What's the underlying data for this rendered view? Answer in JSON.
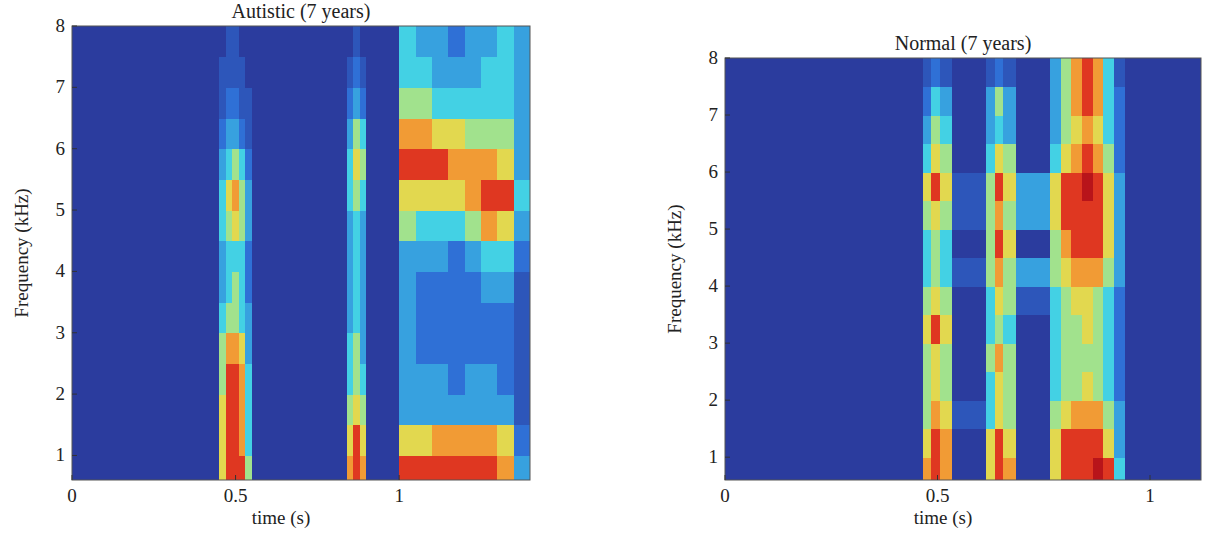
{
  "chart_data": [
    {
      "type": "heatmap",
      "title": "Autistic (7 years)",
      "x_label": "time (s)",
      "y_label": "Frequency (kHz)",
      "xlim": [
        0,
        1.4
      ],
      "ylim": [
        0.6,
        8
      ],
      "xticks": [
        0,
        0.5,
        1
      ],
      "yticks": [
        1,
        2,
        3,
        4,
        5,
        6,
        7,
        8
      ],
      "zlim": [
        0,
        9
      ],
      "xbins": [
        0,
        0.45,
        0.47,
        0.49,
        0.51,
        0.53,
        0.55,
        0.84,
        0.86,
        0.88,
        0.9,
        1.0,
        1.05,
        1.1,
        1.15,
        1.2,
        1.25,
        1.3,
        1.35,
        1.4
      ],
      "ybins": [
        0.6,
        1,
        1.5,
        2,
        2.5,
        3,
        3.5,
        4,
        4.5,
        5,
        5.5,
        6,
        6.5,
        7,
        7.5,
        8
      ],
      "z": [
        [
          0,
          0,
          0,
          0,
          0,
          0,
          0,
          0,
          0,
          0,
          0,
          0,
          0,
          0,
          0
        ],
        [
          6,
          6,
          6,
          5,
          5,
          4,
          3,
          3,
          4,
          4,
          3,
          2,
          1,
          1,
          0
        ],
        [
          8,
          8,
          8,
          8,
          7,
          5,
          4,
          4,
          5,
          6,
          4,
          3,
          2,
          1,
          1
        ],
        [
          8,
          8,
          8,
          8,
          7,
          5,
          5,
          4,
          6,
          7,
          5,
          3,
          2,
          1,
          1
        ],
        [
          8,
          7,
          7,
          7,
          6,
          4,
          4,
          4,
          5,
          5,
          4,
          2,
          1,
          1,
          0
        ],
        [
          5,
          4,
          4,
          4,
          3,
          3,
          2,
          2,
          3,
          3,
          2,
          1,
          1,
          0,
          0
        ],
        [
          0,
          0,
          0,
          0,
          0,
          0,
          0,
          0,
          0,
          0,
          0,
          0,
          0,
          0,
          0
        ],
        [
          7,
          6,
          5,
          4,
          4,
          3,
          3,
          3,
          3,
          4,
          4,
          3,
          2,
          1,
          0
        ],
        [
          8,
          8,
          6,
          5,
          5,
          4,
          4,
          4,
          4,
          5,
          6,
          5,
          3,
          2,
          1
        ],
        [
          7,
          6,
          5,
          4,
          3,
          3,
          3,
          3,
          3,
          4,
          5,
          4,
          2,
          1,
          0
        ],
        [
          0,
          0,
          0,
          0,
          0,
          0,
          0,
          0,
          0,
          0,
          0,
          0,
          0,
          0,
          0
        ],
        [
          8,
          6,
          3,
          3,
          3,
          3,
          3,
          3,
          5,
          6,
          8,
          7,
          5,
          4,
          4
        ],
        [
          8,
          6,
          3,
          3,
          2,
          2,
          2,
          3,
          4,
          6,
          8,
          7,
          5,
          4,
          3
        ],
        [
          8,
          7,
          3,
          3,
          2,
          2,
          2,
          3,
          4,
          6,
          8,
          6,
          4,
          3,
          3
        ],
        [
          8,
          7,
          3,
          2,
          2,
          2,
          2,
          2,
          4,
          6,
          7,
          6,
          4,
          3,
          2
        ],
        [
          8,
          7,
          3,
          3,
          2,
          2,
          2,
          3,
          5,
          7,
          7,
          5,
          4,
          3,
          3
        ],
        [
          8,
          7,
          3,
          3,
          2,
          2,
          3,
          4,
          7,
          8,
          7,
          5,
          4,
          4,
          3
        ],
        [
          7,
          6,
          3,
          2,
          2,
          2,
          3,
          4,
          6,
          8,
          6,
          5,
          4,
          4,
          4
        ],
        [
          3,
          2,
          1,
          1,
          1,
          1,
          1,
          2,
          3,
          4,
          3,
          3,
          3,
          3,
          3
        ]
      ]
    },
    {
      "type": "heatmap",
      "title": "Normal (7 years)",
      "x_label": "time (s)",
      "y_label": "Frequency (kHz)",
      "xlim": [
        0,
        1.12
      ],
      "ylim": [
        0.6,
        8
      ],
      "xticks": [
        0,
        0.5,
        1
      ],
      "yticks": [
        1,
        2,
        3,
        4,
        5,
        6,
        7,
        8
      ],
      "zlim": [
        0,
        9
      ],
      "xbins": [
        0,
        0.465,
        0.485,
        0.505,
        0.535,
        0.615,
        0.635,
        0.655,
        0.685,
        0.765,
        0.79,
        0.815,
        0.84,
        0.865,
        0.89,
        0.915,
        0.94,
        1.12
      ],
      "ybins": [
        0.6,
        1,
        1.5,
        2,
        2.5,
        3,
        3.5,
        4,
        4.5,
        5,
        5.5,
        6,
        6.5,
        7,
        7.5,
        8
      ],
      "z": [
        [
          0,
          0,
          0,
          0,
          0,
          0,
          0,
          0,
          0,
          0,
          0,
          0,
          0,
          0,
          0
        ],
        [
          7,
          6,
          5,
          5,
          5,
          6,
          5,
          4,
          4,
          5,
          6,
          4,
          3,
          2,
          1
        ],
        [
          8,
          8,
          7,
          6,
          6,
          8,
          6,
          5,
          5,
          6,
          8,
          6,
          5,
          4,
          2
        ],
        [
          7,
          7,
          6,
          5,
          5,
          6,
          5,
          4,
          4,
          5,
          6,
          5,
          4,
          3,
          1
        ],
        [
          0,
          0,
          1,
          0,
          0,
          0,
          0,
          1,
          0,
          1,
          1,
          0,
          0,
          0,
          0
        ],
        [
          6,
          6,
          4,
          4,
          5,
          4,
          4,
          5,
          5,
          5,
          5,
          4,
          3,
          3,
          1
        ],
        [
          8,
          8,
          6,
          6,
          7,
          5,
          6,
          7,
          8,
          7,
          8,
          6,
          4,
          5,
          2
        ],
        [
          7,
          6,
          5,
          5,
          5,
          4,
          5,
          5,
          6,
          5,
          6,
          5,
          3,
          3,
          1
        ],
        [
          0,
          0,
          0,
          0,
          0,
          0,
          1,
          3,
          0,
          3,
          3,
          0,
          0,
          0,
          0
        ],
        [
          6,
          6,
          5,
          4,
          4,
          4,
          4,
          5,
          5,
          6,
          6,
          4,
          3,
          3,
          3
        ],
        [
          8,
          8,
          6,
          5,
          5,
          5,
          5,
          6,
          7,
          8,
          8,
          6,
          5,
          5,
          5
        ],
        [
          8,
          8,
          7,
          5,
          5,
          5,
          6,
          7,
          8,
          8,
          8,
          7,
          6,
          7,
          7
        ],
        [
          8,
          8,
          7,
          6,
          5,
          6,
          6,
          7,
          8,
          8,
          9,
          8,
          7,
          8,
          8
        ],
        [
          9,
          8,
          7,
          5,
          5,
          5,
          5,
          7,
          8,
          8,
          8,
          7,
          6,
          7,
          7
        ],
        [
          8,
          6,
          5,
          4,
          4,
          4,
          4,
          5,
          6,
          6,
          6,
          5,
          4,
          4,
          4
        ],
        [
          4,
          3,
          3,
          2,
          2,
          2,
          2,
          3,
          3,
          3,
          3,
          2,
          2,
          2,
          1
        ],
        [
          0,
          0,
          0,
          0,
          0,
          0,
          0,
          0,
          0,
          0,
          0,
          0,
          0,
          0,
          0
        ]
      ]
    }
  ]
}
